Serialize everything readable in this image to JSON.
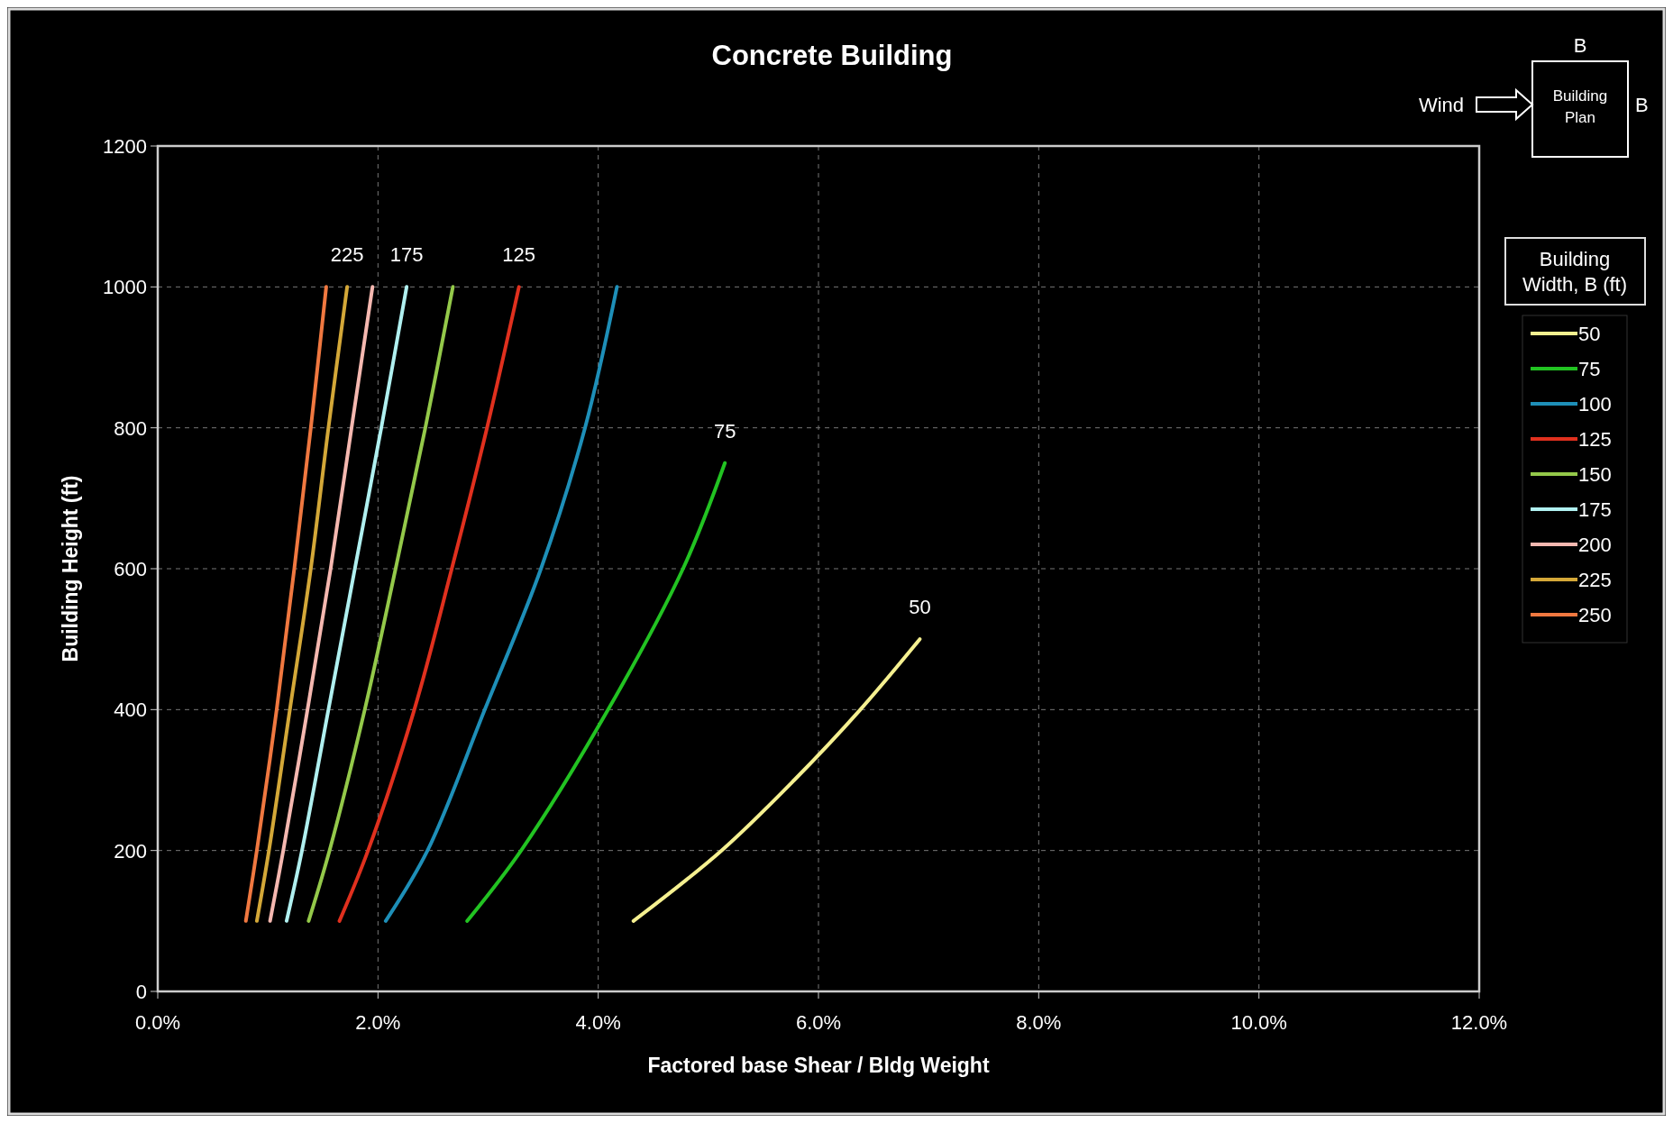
{
  "chart_data": {
    "type": "line",
    "title": "Concrete Building",
    "xlabel": "Factored base Shear / Bldg Weight",
    "ylabel": "Building Height (ft)",
    "legend_title": "Building Width, B (ft)",
    "legend": "right",
    "grid": true,
    "line_style": "solid",
    "marker": "none",
    "xlim": [
      0,
      12
    ],
    "ylim": [
      0,
      1200
    ],
    "xticks": [
      {
        "value": 0,
        "label": "0.0%"
      },
      {
        "value": 2,
        "label": "2.0%"
      },
      {
        "value": 4,
        "label": "4.0%"
      },
      {
        "value": 6,
        "label": "6.0%"
      },
      {
        "value": 8,
        "label": "8.0%"
      },
      {
        "value": 10,
        "label": "10.0%"
      },
      {
        "value": 12,
        "label": "12.0%"
      }
    ],
    "yticks": [
      0,
      200,
      400,
      600,
      800,
      1000,
      1200
    ],
    "series": [
      {
        "name": "50",
        "color": "#f5f090",
        "x": [
          4.32,
          5.12,
          5.78,
          6.38,
          6.92
        ],
        "values": [
          100,
          200,
          300,
          400,
          500
        ]
      },
      {
        "name": "75",
        "color": "#22c322",
        "x": [
          2.81,
          3.3,
          4.09,
          4.77,
          5.15
        ],
        "values": [
          100,
          200,
          400,
          600,
          750
        ]
      },
      {
        "name": "100",
        "color": "#1e8fb8",
        "x": [
          2.07,
          2.45,
          2.97,
          3.48,
          3.88,
          4.17
        ],
        "values": [
          100,
          200,
          400,
          600,
          800,
          1000
        ]
      },
      {
        "name": "125",
        "color": "#e0301e",
        "x": [
          1.65,
          1.91,
          2.33,
          2.67,
          2.99,
          3.28
        ],
        "values": [
          100,
          200,
          400,
          600,
          800,
          1000
        ]
      },
      {
        "name": "150",
        "color": "#94c94a",
        "x": [
          1.37,
          1.56,
          1.88,
          2.16,
          2.43,
          2.68
        ],
        "values": [
          100,
          200,
          400,
          600,
          800,
          1000
        ]
      },
      {
        "name": "175",
        "color": "#b0f0f0",
        "x": [
          1.17,
          1.31,
          1.55,
          1.79,
          2.03,
          2.26
        ],
        "values": [
          100,
          200,
          400,
          600,
          800,
          1000
        ]
      },
      {
        "name": "200",
        "color": "#f5b8b0",
        "x": [
          1.02,
          1.14,
          1.36,
          1.57,
          1.76,
          1.95
        ],
        "values": [
          100,
          200,
          400,
          600,
          800,
          1000
        ]
      },
      {
        "name": "225",
        "color": "#d4a838",
        "x": [
          0.9,
          1.01,
          1.2,
          1.39,
          1.55,
          1.72
        ],
        "values": [
          100,
          200,
          400,
          600,
          800,
          1000
        ]
      },
      {
        "name": "250",
        "color": "#f07840",
        "x": [
          0.8,
          0.9,
          1.08,
          1.24,
          1.39,
          1.53
        ],
        "values": [
          100,
          200,
          400,
          600,
          800,
          1000
        ]
      }
    ],
    "annotations": [
      {
        "text": "225",
        "x": 1.72,
        "y": 1000
      },
      {
        "text": "175",
        "x": 2.26,
        "y": 1000
      },
      {
        "text": "125",
        "x": 3.28,
        "y": 1000
      },
      {
        "text": "75",
        "x": 5.15,
        "y": 750
      },
      {
        "text": "50",
        "x": 6.92,
        "y": 500
      },
      "B",
      "Wind",
      "Building Plan",
      "B"
    ]
  }
}
